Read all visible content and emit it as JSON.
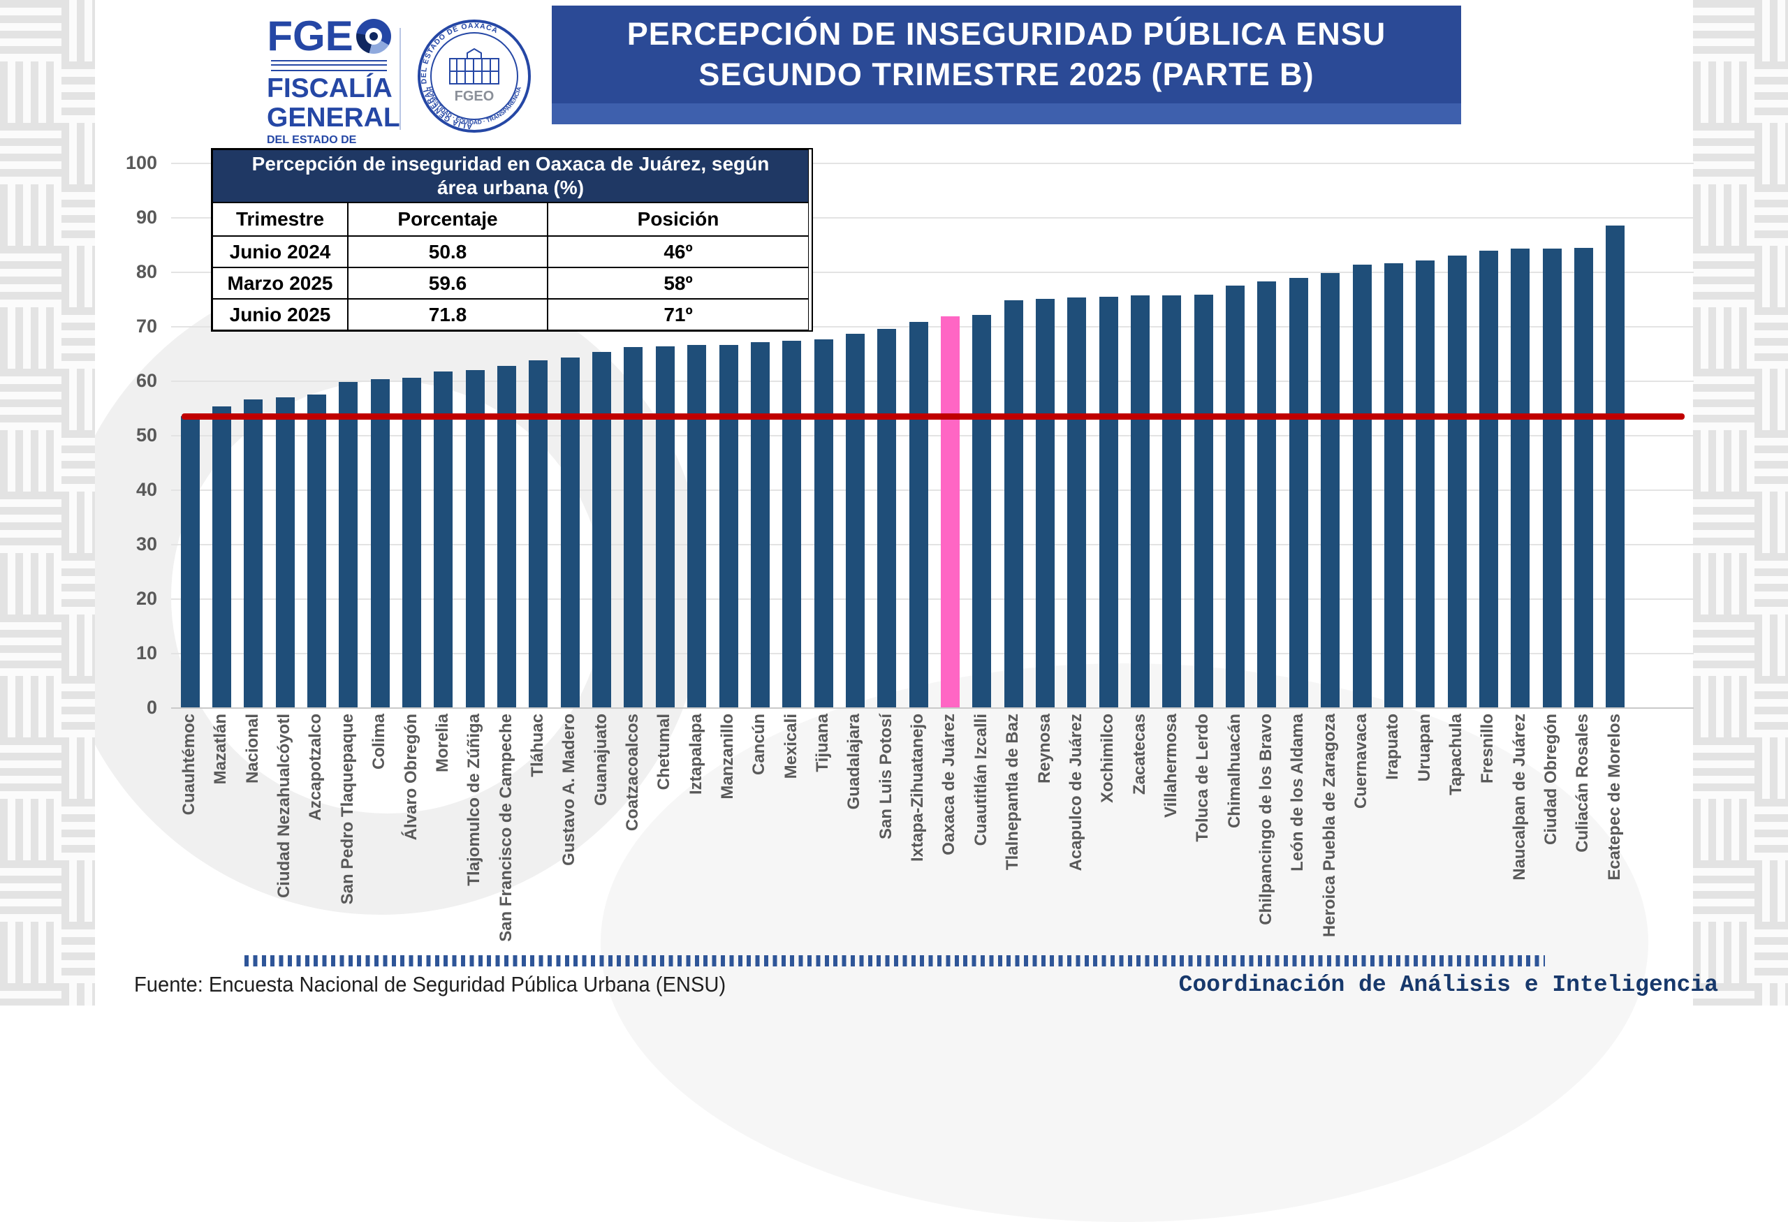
{
  "header": {
    "title_line1": "PERCEPCIÓN DE INSEGURIDAD PÚBLICA ENSU",
    "title_line2": "SEGUNDO TRIMESTRE 2025 (PARTE B)",
    "banner_color": "#2b4a96",
    "banner_strip_color": "#3e60ad"
  },
  "logo": {
    "wordmark": "FGE",
    "line1": "FISCALÍA",
    "line2": "GENERAL",
    "line3": "DEL ESTADO DE",
    "line4": "OAXACA",
    "seal_ring_top": "FISCALÍA GENERAL DEL ESTADO DE OAXACA",
    "seal_ring_bottom": "HONESTIDAD · EQUIDAD · TRANSPARENCIA",
    "seal_center": "FGEO"
  },
  "info_table": {
    "title": "Percepción de inseguridad en Oaxaca de Juárez, según área urbana (%)",
    "columns": [
      "Trimestre",
      "Porcentaje",
      "Posición"
    ],
    "rows": [
      [
        "Junio 2024",
        "50.8",
        "46º"
      ],
      [
        "Marzo 2025",
        "59.6",
        "58º"
      ],
      [
        "Junio 2025",
        "71.8",
        "71º"
      ]
    ],
    "header_bg": "#1f3864"
  },
  "footer": {
    "source": "Fuente: Encuesta Nacional de Seguridad Pública Urbana (ENSU)",
    "credit": "Coordinación de Análisis e Inteligencia"
  },
  "chart_data": {
    "type": "bar",
    "title": "Percepción de inseguridad pública ENSU segundo trimestre 2025 (Parte B)",
    "xlabel": "",
    "ylabel": "",
    "ylim": [
      0,
      100
    ],
    "yticks": [
      0,
      10,
      20,
      30,
      40,
      50,
      60,
      70,
      80,
      90,
      100
    ],
    "grid": true,
    "bar_color": "#1f4e79",
    "highlight_category": "Oaxaca de Juárez",
    "highlight_index": 24,
    "highlight_color": "#ff66c4",
    "reference_line": {
      "value": 53.5,
      "color": "#c00000"
    },
    "categories": [
      "Cuauhtémoc",
      "Mazatlán",
      "Nacional",
      "Ciudad Nezahualcóyotl",
      "Azcapotzalco",
      "San Pedro Tlaquepaque",
      "Colima",
      "Álvaro Obregón",
      "Morelia",
      "Tlajomulco de Zúñiga",
      "San Francisco de Campeche",
      "Tláhuac",
      "Gustavo A. Madero",
      "Guanajuato",
      "Coatzacoalcos",
      "Chetumal",
      "Iztapalapa",
      "Manzanillo",
      "Cancún",
      "Mexicali",
      "Tijuana",
      "Guadalajara",
      "San Luis Potosí",
      "Ixtapa-Zihuatanejo",
      "Oaxaca de Juárez",
      "Cuautitlán Izcalli",
      "Tlalnepantla de Baz",
      "Reynosa",
      "Acapulco de Juárez",
      "Xochimilco",
      "Zacatecas",
      "Villahermosa",
      "Toluca de Lerdo",
      "Chimalhuacán",
      "Chilpancingo de los Bravo",
      "León de los Aldama",
      "Heroica Puebla de Zaragoza",
      "Cuernavaca",
      "Irapuato",
      "Uruapan",
      "Tapachula",
      "Fresnillo",
      "Naucalpan de Juárez",
      "Ciudad Obregón",
      "Culiacán Rosales",
      "Ecatepec de Morelos"
    ],
    "values": [
      53.5,
      55.3,
      56.6,
      56.9,
      57.5,
      59.8,
      60.2,
      60.5,
      61.7,
      61.9,
      62.7,
      63.7,
      64.3,
      65.3,
      66.2,
      66.3,
      66.5,
      66.6,
      67.0,
      67.3,
      67.6,
      68.6,
      69.5,
      70.8,
      71.8,
      72.1,
      74.8,
      75.0,
      75.3,
      75.4,
      75.6,
      75.7,
      75.8,
      77.5,
      78.2,
      78.9,
      79.8,
      81.3,
      81.6,
      82.1,
      82.9,
      83.9,
      84.2,
      84.3,
      84.4,
      88.5
    ]
  }
}
